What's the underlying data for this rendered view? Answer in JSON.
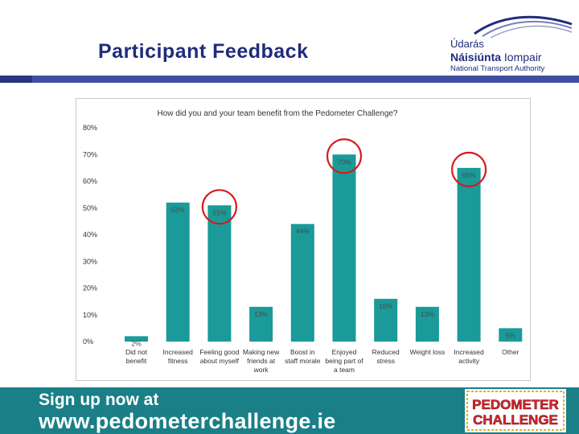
{
  "slide": {
    "title": "Participant Feedback"
  },
  "logo": {
    "line1": "Údarás",
    "line2_bold": "Náisiúnta",
    "line2_rest": " Iompair",
    "line3": "National Transport Authority"
  },
  "footer": {
    "line1": "Sign up now at",
    "line2": "www.pedometerchallenge.ie",
    "badge_line1": "PEDOMETER",
    "badge_line2": "CHALLENGE"
  },
  "colors": {
    "bar": "#1a9a98",
    "highlight_circle": "#d7191c",
    "title": "#1f2c7c",
    "footer_bg": "#1a7f87"
  },
  "chart_data": {
    "type": "bar",
    "title": "How did you and your team benefit from the Pedometer Challenge?",
    "categories": [
      [
        "Did not",
        "benefit"
      ],
      [
        "Increased",
        "fitness"
      ],
      [
        "Feeling good",
        "about myself"
      ],
      [
        "Making new",
        "friends at",
        "work"
      ],
      [
        "Boost in",
        "staff morale"
      ],
      [
        "Enjoyed",
        "being part of",
        "a team"
      ],
      [
        "Reduced",
        "stress"
      ],
      [
        "Weight loss"
      ],
      [
        "Increased",
        "activity"
      ],
      [
        "Other"
      ]
    ],
    "values": [
      2,
      52,
      51,
      13,
      44,
      70,
      16,
      13,
      65,
      5
    ],
    "data_labels": [
      "2%",
      "52%",
      "51%",
      "13%",
      "44%",
      "70%",
      "16%",
      "13%",
      "65%",
      "5%"
    ],
    "highlighted": [
      2,
      5,
      8
    ],
    "y_ticks": [
      "0%",
      "10%",
      "20%",
      "30%",
      "40%",
      "50%",
      "60%",
      "70%",
      "80%"
    ],
    "ylim": [
      0,
      80
    ],
    "grid": false,
    "legend": "none"
  }
}
